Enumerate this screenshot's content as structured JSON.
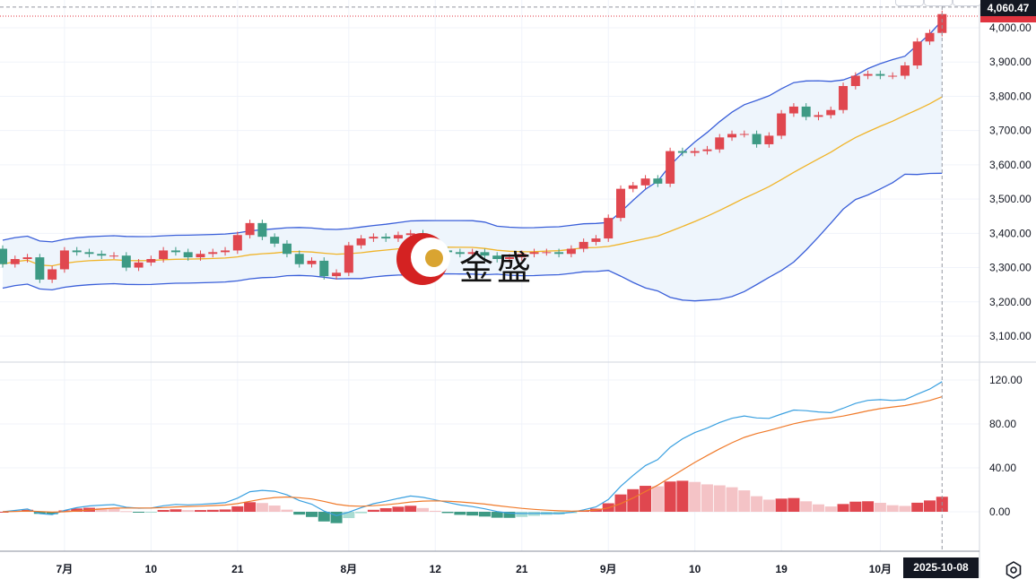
{
  "chart_data": [
    {
      "type": "candlestick",
      "title": "",
      "dates": [
        "2025-06-24",
        "2025-06-25",
        "2025-06-26",
        "2025-06-27",
        "2025-06-30",
        "2025-07-01",
        "2025-07-02",
        "2025-07-03",
        "2025-07-04",
        "2025-07-07",
        "2025-07-08",
        "2025-07-09",
        "2025-07-10",
        "2025-07-11",
        "2025-07-14",
        "2025-07-15",
        "2025-07-16",
        "2025-07-17",
        "2025-07-18",
        "2025-07-21",
        "2025-07-22",
        "2025-07-23",
        "2025-07-24",
        "2025-07-25",
        "2025-07-28",
        "2025-07-29",
        "2025-07-30",
        "2025-07-31",
        "2025-08-01",
        "2025-08-04",
        "2025-08-05",
        "2025-08-06",
        "2025-08-07",
        "2025-08-08",
        "2025-08-11",
        "2025-08-12",
        "2025-08-13",
        "2025-08-14",
        "2025-08-15",
        "2025-08-18",
        "2025-08-19",
        "2025-08-20",
        "2025-08-21",
        "2025-08-22",
        "2025-08-25",
        "2025-08-26",
        "2025-08-27",
        "2025-08-28",
        "2025-08-29",
        "2025-09-01",
        "2025-09-02",
        "2025-09-03",
        "2025-09-04",
        "2025-09-05",
        "2025-09-08",
        "2025-09-09",
        "2025-09-10",
        "2025-09-11",
        "2025-09-12",
        "2025-09-15",
        "2025-09-16",
        "2025-09-17",
        "2025-09-18",
        "2025-09-19",
        "2025-09-22",
        "2025-09-23",
        "2025-09-24",
        "2025-09-25",
        "2025-09-26",
        "2025-09-29",
        "2025-09-30",
        "2025-10-01",
        "2025-10-02",
        "2025-10-03",
        "2025-10-06",
        "2025-10-07",
        "2025-10-08"
      ],
      "first_open": 3355,
      "close": [
        3310,
        3325,
        3330,
        3265,
        3295,
        3350,
        3345,
        3340,
        3335,
        3335,
        3300,
        3315,
        3325,
        3350,
        3345,
        3330,
        3340,
        3345,
        3350,
        3395,
        3430,
        3390,
        3370,
        3340,
        3310,
        3320,
        3275,
        3285,
        3365,
        3385,
        3390,
        3385,
        3395,
        3400,
        3365,
        3350,
        3345,
        3340,
        3345,
        3335,
        3325,
        3330,
        3340,
        3345,
        3345,
        3340,
        3355,
        3375,
        3385,
        3445,
        3530,
        3540,
        3560,
        3545,
        3640,
        3635,
        3640,
        3645,
        3680,
        3690,
        3690,
        3660,
        3685,
        3750,
        3770,
        3740,
        3745,
        3760,
        3830,
        3860,
        3865,
        3860,
        3860,
        3890,
        3960,
        3985,
        4040
      ],
      "indicators": [
        "Bollinger Bands (20, 2)",
        "MACD (12, 26, 9)"
      ],
      "y_ticks": [
        "4,000.00",
        "3,900.00",
        "3,800.00",
        "3,700.00",
        "3,600.00",
        "3,500.00",
        "3,400.00",
        "3,300.00",
        "3,200.00",
        "3,100.00"
      ],
      "ylim": [
        3050,
        4080
      ],
      "crosshair_price": "4,060.47",
      "crosshair_date": "2025-10-08",
      "macd_ticks": [
        "120.00",
        "80.00",
        "40.00",
        "0.00"
      ],
      "macd_ylim": [
        -15,
        140
      ],
      "x_ticks": [
        {
          "label": "7月",
          "date": "2025-07-01"
        },
        {
          "label": "10",
          "date": "2025-07-10"
        },
        {
          "label": "21",
          "date": "2025-07-21"
        },
        {
          "label": "8月",
          "date": "2025-08-01"
        },
        {
          "label": "12",
          "date": "2025-08-12"
        },
        {
          "label": "21",
          "date": "2025-08-21"
        },
        {
          "label": "9月",
          "date": "2025-09-01"
        },
        {
          "label": "10",
          "date": "2025-09-10"
        },
        {
          "label": "19",
          "date": "2025-09-19"
        },
        {
          "label": "10月",
          "date": "2025-10-01"
        }
      ],
      "colors": {
        "up": "#e0474f",
        "down": "#3d9a84",
        "band": "#3a5fd9",
        "band_fill": "#eef5fc",
        "middle": "#f0b429",
        "dif": "#3aa0e0",
        "dea": "#f07a2a",
        "hist_up_strong": "#e0474f",
        "hist_up_weak": "#f4c3c6",
        "hist_down_strong": "#3d9a84",
        "hist_down_weak": "#a9dcd2"
      },
      "grid": true
    }
  ],
  "watermark": "金盛",
  "settings_icon": "gear-icon"
}
